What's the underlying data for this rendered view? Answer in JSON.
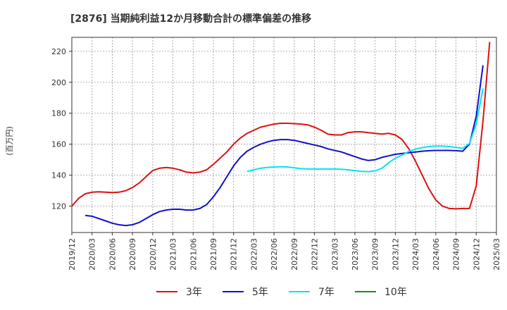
{
  "chart_data": {
    "type": "line",
    "title": "[2876]  当期純利益12か月移動合計の標準偏差の推移",
    "ylabel": "(百万円)",
    "xlabel": "",
    "ylim": [
      103,
      229
    ],
    "yticks": [
      120,
      140,
      160,
      180,
      200,
      220
    ],
    "xticks": [
      "2019/12",
      "2020/03",
      "2020/06",
      "2020/09",
      "2020/12",
      "2021/03",
      "2021/06",
      "2021/09",
      "2021/12",
      "2022/03",
      "2022/06",
      "2022/09",
      "2022/12",
      "2023/03",
      "2023/06",
      "2023/09",
      "2023/12",
      "2024/03",
      "2024/06",
      "2024/09",
      "2024/12",
      "2025/03"
    ],
    "grid": true,
    "legend_position": "bottom",
    "series": [
      {
        "name": "3年",
        "color": "#dd1111",
        "start": "2019/12",
        "values": [
          120,
          125,
          128,
          129,
          129.3,
          129,
          128.8,
          129,
          130,
          132,
          135,
          139,
          143,
          144.5,
          145,
          144.5,
          143.5,
          142,
          141.5,
          142,
          143.5,
          147,
          151,
          155,
          160,
          164,
          167,
          169,
          171,
          172,
          173,
          173.5,
          173.5,
          173.3,
          173,
          172.5,
          171,
          169,
          166.5,
          166,
          166,
          167.5,
          168,
          168,
          167.5,
          167,
          166.5,
          167,
          166,
          163,
          157,
          149,
          140,
          131,
          124,
          120,
          118.5,
          118.3,
          118.5,
          118.5,
          133,
          175,
          226
        ]
      },
      {
        "name": "5年",
        "color": "#1111cc",
        "start": "2020/02",
        "values": [
          114,
          113.5,
          112,
          110.5,
          109,
          108,
          107.5,
          108,
          109.5,
          112,
          114.5,
          116.5,
          117.5,
          118,
          118,
          117.5,
          117.5,
          118.5,
          121,
          126,
          132,
          139,
          146,
          151.5,
          155.5,
          158,
          160,
          161.5,
          162.5,
          163,
          163,
          162.5,
          161.5,
          160.5,
          159.5,
          158.5,
          157,
          156,
          155,
          153.5,
          152,
          150.5,
          149.5,
          150,
          151.5,
          152.5,
          153.5,
          154,
          154.5,
          155,
          155.5,
          155.8,
          156,
          156,
          156,
          155.8,
          155.5,
          160,
          178,
          211
        ]
      },
      {
        "name": "7年",
        "color": "#00e5ee",
        "start": "2022/02",
        "values": [
          142.5,
          143.5,
          144.5,
          145,
          145.3,
          145.5,
          145.3,
          144.8,
          144.2,
          144,
          144,
          144,
          144,
          144,
          143.8,
          143.5,
          143,
          142.5,
          142.3,
          142.8,
          144.5,
          148,
          151,
          153,
          155.3,
          156.8,
          157.8,
          158.5,
          158.8,
          158.8,
          158.5,
          158,
          157.3,
          160.5,
          173,
          196
        ]
      },
      {
        "name": "10年",
        "color": "#228822",
        "start": "2019/12",
        "values": []
      }
    ]
  }
}
